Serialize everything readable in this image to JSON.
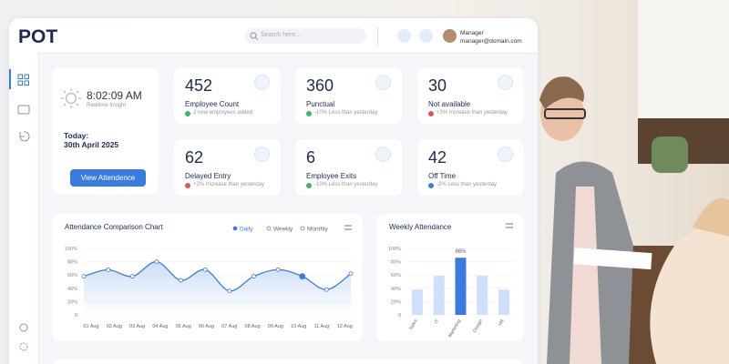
{
  "header": {
    "logo": "POT",
    "search_placeholder": "Search here...",
    "user_role": "Manager",
    "user_email": "manager@domain.com"
  },
  "clock": {
    "time": "8:02:09 AM",
    "subtitle": "Realtime Insight",
    "today_label": "Today:",
    "date": "30th April 2025",
    "button": "View Attendence"
  },
  "stats": [
    {
      "value": 452,
      "label": "Employee Count",
      "note": "2 new employees added"
    },
    {
      "value": 360,
      "label": "Punctual",
      "note": "-10% Less than yesterday"
    },
    {
      "value": 30,
      "label": "Not available",
      "note": "+3% Increase than yesterday"
    },
    {
      "value": 62,
      "label": "Delayed Entry",
      "note": "+3% Increase than yesterday"
    },
    {
      "value": 6,
      "label": "Employee Exits",
      "note": "-10% Less than yesterday"
    },
    {
      "value": 42,
      "label": "Off Time",
      "note": "-2% Less than yesterday"
    }
  ],
  "attendance_chart": {
    "type": "line",
    "title": "Attendance Comparison Chart",
    "options": [
      "Daily",
      "Weekly",
      "Monthly"
    ],
    "categories": [
      "01 Aug",
      "02 Aug",
      "03 Aug",
      "04 Aug",
      "05 Aug",
      "06 Aug",
      "07 Aug",
      "08 Aug",
      "09 Aug",
      "10 Aug",
      "11 Aug",
      "12 Aug"
    ],
    "series": [
      {
        "name": "Daily",
        "color": "#3a7be0",
        "values": [
          58,
          68,
          58,
          80,
          52,
          68,
          36,
          58,
          68,
          58,
          38,
          62
        ]
      }
    ],
    "ylim": [
      0,
      100
    ],
    "yticks": [
      {
        "value": 0,
        "label": "0"
      },
      {
        "value": 20,
        "label": "20%"
      },
      {
        "value": 40,
        "label": "40%"
      },
      {
        "value": 60,
        "label": "60%"
      },
      {
        "value": 80,
        "label": "80%"
      },
      {
        "value": 100,
        "label": "100%"
      }
    ]
  },
  "weekly_chart": {
    "type": "bar",
    "title": "Weekly Attendance",
    "categories": [
      "Sales",
      "IT",
      "Marketing",
      "Design",
      "HR"
    ],
    "values": [
      38,
      59,
      86,
      59,
      38
    ],
    "value_labels": [
      null,
      null,
      "86%",
      null,
      null
    ],
    "color": "#cfe0fb",
    "highlight_color": "#3a7be0",
    "ylim": [
      0,
      100
    ],
    "yticks": [
      {
        "value": 0,
        "label": "0"
      },
      {
        "value": 20,
        "label": "20%"
      },
      {
        "value": 40,
        "label": "40%"
      },
      {
        "value": 60,
        "label": "60%"
      },
      {
        "value": 80,
        "label": "80%"
      },
      {
        "value": 100,
        "label": "100%"
      }
    ]
  }
}
